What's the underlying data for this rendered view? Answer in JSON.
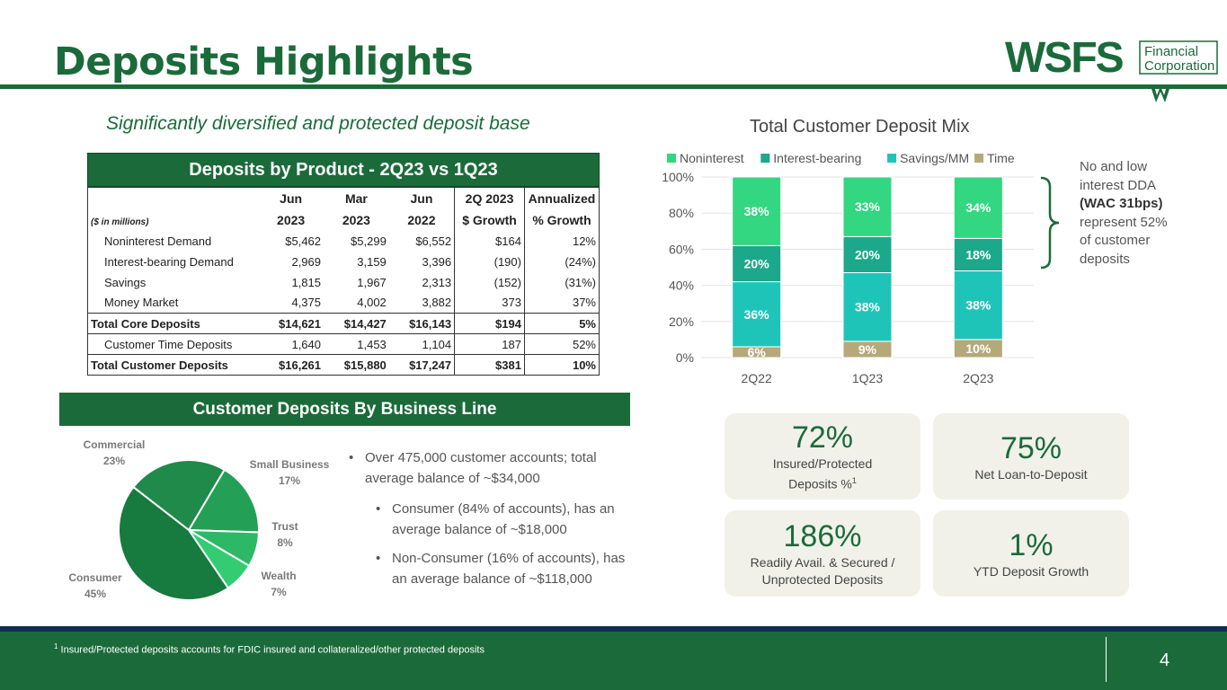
{
  "title": "Deposits Highlights",
  "subtitle": "Significantly diversified and protected deposit base",
  "logo": {
    "main": "WSFS",
    "line1": "Financial",
    "line2": "Corporation"
  },
  "table": {
    "title": "Deposits by Product - 2Q23 vs 1Q23",
    "units": "($ in millions)",
    "headers": [
      {
        "top": "Jun",
        "bottom": "2023"
      },
      {
        "top": "Mar",
        "bottom": "2023"
      },
      {
        "top": "Jun",
        "bottom": "2022"
      },
      {
        "top": "2Q 2023",
        "bottom": "$ Growth"
      },
      {
        "top": "Annualized",
        "bottom": "% Growth"
      }
    ],
    "rows": [
      {
        "label": "Noninterest Demand",
        "v": [
          "$5,462",
          "$5,299",
          "$6,552",
          "$164",
          "12%"
        ],
        "bold": false
      },
      {
        "label": "Interest-bearing Demand",
        "v": [
          "2,969",
          "3,159",
          "3,396",
          "(190)",
          "(24%)"
        ],
        "bold": false
      },
      {
        "label": "Savings",
        "v": [
          "1,815",
          "1,967",
          "2,313",
          "(152)",
          "(31%)"
        ],
        "bold": false
      },
      {
        "label": "Money Market",
        "v": [
          "4,375",
          "4,002",
          "3,882",
          "373",
          "37%"
        ],
        "bold": false
      },
      {
        "label": "Total Core Deposits",
        "v": [
          "$14,621",
          "$14,427",
          "$16,143",
          "$194",
          "5%"
        ],
        "bold": true
      },
      {
        "label": "Customer Time Deposits",
        "v": [
          "1,640",
          "1,453",
          "1,104",
          "187",
          "52%"
        ],
        "bold": false
      },
      {
        "label": "Total Customer Deposits",
        "v": [
          "$16,261",
          "$15,880",
          "$17,247",
          "$381",
          "10%"
        ],
        "bold": true
      }
    ]
  },
  "business": {
    "title": "Customer Deposits By Business Line",
    "slices": [
      {
        "name": "Commercial",
        "pct": "23%",
        "value": 23,
        "color": "#1f8a4a"
      },
      {
        "name": "Small Business",
        "pct": "17%",
        "value": 17,
        "color": "#23a056"
      },
      {
        "name": "Trust",
        "pct": "8%",
        "value": 8,
        "color": "#2db866"
      },
      {
        "name": "Wealth",
        "pct": "7%",
        "value": 7,
        "color": "#33cc73"
      },
      {
        "name": "Consumer",
        "pct": "45%",
        "value": 45,
        "color": "#177a3f"
      }
    ],
    "bullets": [
      "Over 475,000 customer accounts; total average balance of ~$34,000",
      "Consumer (84% of accounts), has an average balance of ~$18,000",
      "Non-Consumer (16% of accounts), has an average balance of ~$118,000"
    ]
  },
  "chart_data": {
    "type": "bar",
    "stacked": true,
    "title": "Total Customer Deposit Mix",
    "categories": [
      "2Q22",
      "1Q23",
      "2Q23"
    ],
    "yticks": [
      "0%",
      "20%",
      "40%",
      "60%",
      "80%",
      "100%"
    ],
    "ylim": [
      0,
      100
    ],
    "series": [
      {
        "name": "Time",
        "values": [
          6,
          9,
          10
        ],
        "labels": [
          "6%",
          "9%",
          "10%"
        ],
        "color": "#b5a97a"
      },
      {
        "name": "Savings/MM",
        "values": [
          36,
          38,
          38
        ],
        "labels": [
          "36%",
          "38%",
          "38%"
        ],
        "color": "#1fc4b9"
      },
      {
        "name": "Interest-bearing",
        "values": [
          20,
          20,
          18
        ],
        "labels": [
          "20%",
          "20%",
          "18%"
        ],
        "color": "#1ca88a"
      },
      {
        "name": "Noninterest",
        "values": [
          38,
          33,
          34
        ],
        "labels": [
          "38%",
          "33%",
          "34%"
        ],
        "color": "#33d681"
      }
    ],
    "legend_order": [
      "Noninterest",
      "Interest-bearing",
      "Savings/MM",
      "Time"
    ],
    "legend": "top"
  },
  "dda_note": {
    "l1": "No and low interest DDA",
    "bold": "(WAC 31bps)",
    "l2": "represent 52% of customer deposits"
  },
  "kpis": [
    {
      "value": "72%",
      "label": "Insured/Protected Deposits %",
      "sup": "1"
    },
    {
      "value": "75%",
      "label": "Net Loan-to-Deposit",
      "sup": ""
    },
    {
      "value": "186%",
      "label": "Readily Avail. & Secured / Unprotected Deposits",
      "sup": ""
    },
    {
      "value": "1%",
      "label": "YTD Deposit Growth",
      "sup": ""
    }
  ],
  "footnote": {
    "sup": "1",
    "text": "Insured/Protected deposits accounts for FDIC insured and collateralized/other protected deposits"
  },
  "page_number": "4",
  "colors": {
    "brand_green": "#1b6b3a",
    "navy": "#0f2d52"
  }
}
